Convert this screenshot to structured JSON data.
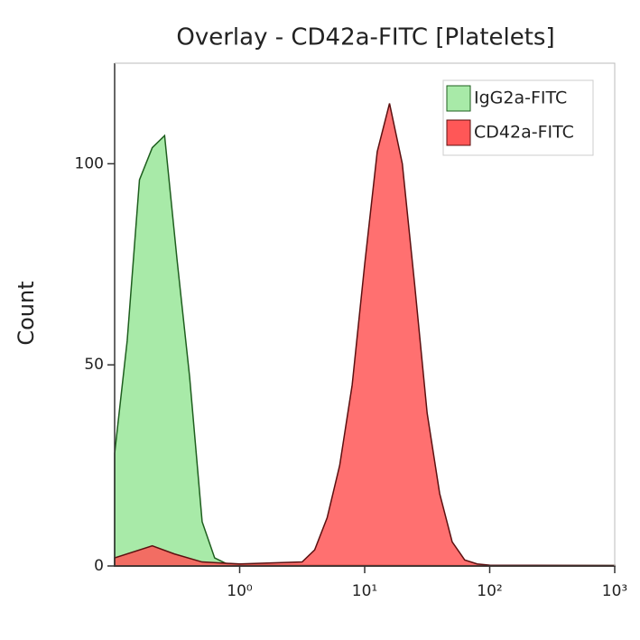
{
  "chart_data": {
    "type": "histogram-overlay",
    "title": "Overlay - CD42a-FITC [Platelets]",
    "y_label": "Count",
    "xscale": "log",
    "xlim": [
      0.1,
      1000
    ],
    "ylim": [
      0,
      125
    ],
    "xticks": [
      {
        "value": 1,
        "label": "10⁰"
      },
      {
        "value": 10,
        "label": "10¹"
      },
      {
        "value": 100,
        "label": "10²"
      },
      {
        "value": 1000,
        "label": "10³"
      }
    ],
    "yticks": [
      0,
      50,
      100
    ],
    "legend": "upper right",
    "series": [
      {
        "name": "IgG2a-FITC",
        "color": "#a8eaa8",
        "edge": "#1e5e1e",
        "x": [
          0.1,
          0.126,
          0.158,
          0.2,
          0.251,
          0.316,
          0.398,
          0.501,
          0.631,
          0.794,
          1,
          3.16,
          10,
          100,
          1000
        ],
        "values": [
          28,
          56,
          96,
          104,
          107,
          76,
          47,
          11,
          2,
          0.5,
          0.3,
          0.2,
          0.2,
          0.1,
          0.1
        ]
      },
      {
        "name": "CD42a-FITC",
        "color": "#ff5757",
        "edge": "#5c1010",
        "x": [
          0.1,
          0.2,
          0.3,
          0.5,
          1,
          3.16,
          3.98,
          5.01,
          6.31,
          7.94,
          10,
          12.6,
          15.8,
          20,
          25.1,
          31.6,
          39.8,
          50.1,
          63.1,
          79.4,
          100,
          1000
        ],
        "values": [
          2,
          5,
          3,
          1,
          0.5,
          1,
          4,
          12,
          25,
          45,
          75,
          103,
          115,
          100,
          70,
          38,
          18,
          6,
          1.5,
          0.5,
          0.2,
          0.1
        ]
      }
    ]
  }
}
